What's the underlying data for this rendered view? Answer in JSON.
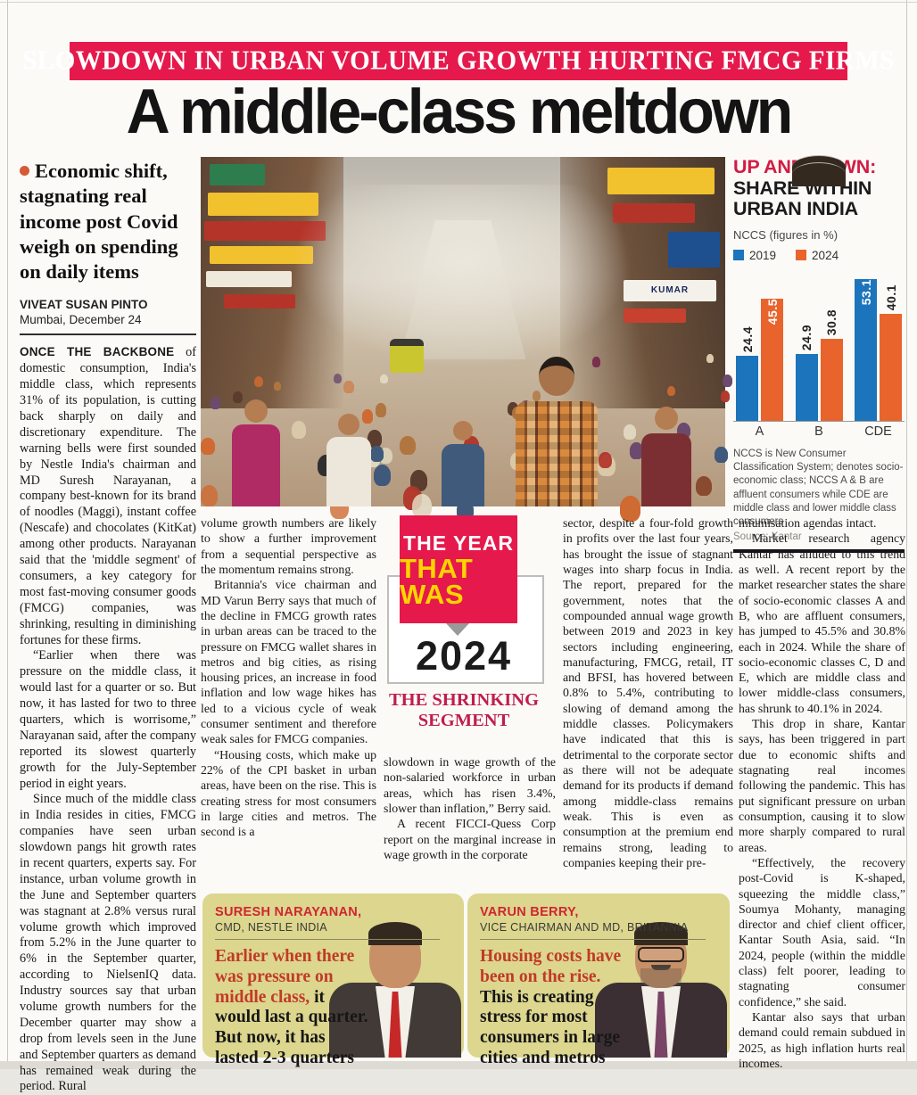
{
  "colors": {
    "accent_red": "#e5194b",
    "headline_black": "#141414",
    "chart_blue": "#1b74bc",
    "chart_orange": "#e8642c",
    "chart_title_red": "#d21c45",
    "badge_yellow": "#ffd400",
    "badge_tagline_red": "#bf1e4b",
    "quote_box_bg": "#dcd68e",
    "quote_highlight_red": "#c13a28",
    "quote_name_red": "#cf2630",
    "suit_dark": "#423a36",
    "tie_red": "#c62828",
    "tie_purple": "#7a4467"
  },
  "banner": {
    "text": "SLOWDOWN IN URBAN VOLUME GROWTH HURTING FMCG FIRMS"
  },
  "headline": "A middle-class meltdown",
  "standfirst": "Economic shift, stagnating real income post Covid weigh on spending on daily items",
  "byline": {
    "author": "VIVEAT SUSAN PINTO",
    "dateline": "Mumbai, December 24"
  },
  "article": {
    "col1": {
      "lead_in": "ONCE THE BACKBONE",
      "p1_rest": " of domestic consumption, India's middle class, which represents 31% of its population, is cutting back sharply on daily and discretionary expenditure. The warning bells were first sounded by Nestle India's chairman and MD Suresh Narayanan, a company best-known for its brand of noodles (Maggi), instant coffee (Nescafe) and chocolates (KitKat) among other products. Narayanan said that the 'middle segment' of consumers, a key category for most fast-moving consumer goods (FMCG) companies, was shrinking, resulting in diminishing fortunes for these firms.",
      "p2": "“Earlier when there was pressure on the middle class, it would last for a quarter or so. But now, it has lasted for two to three quarters, which is worrisome,” Narayanan said, after the company reported its slowest quarterly growth for the July-September period in eight years.",
      "p3": "Since much of the middle class in India resides in cities, FMCG companies have seen urban slowdown pangs hit growth rates in recent quarters, experts say. For instance, urban volume growth in the June and September quarters was stagnant at 2.8% versus rural volume growth which improved from 5.2% in the June quarter to 6% in the September quarter, according to NielsenIQ data. Industry sources say that urban volume growth numbers for the December quarter may show a drop from levels seen in the June and September quarters as demand has remained weak during the period. Rural"
    },
    "col2": {
      "p1": "volume growth numbers are likely to show a further improvement from a sequential perspective as the momentum remains strong.",
      "p2": "Britannia's vice chairman and MD Varun Berry says that much of the decline in FMCG growth rates in urban areas can be traced to the pressure on FMCG wallet shares in metros and big cities, as rising housing prices, an increase in food inflation and low wage hikes has led to a vicious cycle of weak consumer sentiment and therefore weak sales for FMCG companies.",
      "p3": "“Housing costs, which make up 22% of the CPI basket in urban areas, have been on the rise. This is creating stress for most consumers in large cities and metros. The second is a"
    },
    "col3": {
      "p1": "slowdown in wage growth of the non-salaried workforce in urban areas, which has risen 3.4%, slower than inflation,” Berry said.",
      "p2": "A recent FICCI-Quess Corp report on the marginal increase in wage growth in the corporate"
    },
    "col4": {
      "p1": "sector, despite a four-fold growth in profits over the last four years, has brought the issue of stagnant wages into sharp focus in India. The report, prepared for the government, notes that the compounded annual wage growth between 2019 and 2023 in key sectors including engineering, manufacturing, FMCG, retail, IT and BFSI, has hovered between 0.8% to 5.4%, contributing to slowing of demand among the middle classes. Policymakers have indicated that this is detrimental to the corporate sector as there will not be adequate demand for its products if demand among middle-class remains weak. This is even as consumption at the premium end remains strong, leading to companies keeping their pre-"
    },
    "col5": {
      "p1": "miumisation agendas intact.",
      "p2": "Market research agency Kantar has alluded to this trend as well. A recent report by the market researcher states the share of socio-economic classes A and B, who are affluent consumers, has jumped to 45.5% and 30.8% each in 2024. While the share of socio-economic classes C, D and E, which are middle class and lower middle-class consumers, has shrunk to 40.1% in 2024.",
      "p3": "This drop in share, Kantar says, has been triggered in part due to economic shifts and stagnating real incomes following the pandemic. This has put significant pressure on urban consumption, causing it to slow more sharply compared to rural areas.",
      "p4": "“Effectively, the recovery post-Covid is K-shaped, squeezing the middle class,” Soumya Mohanty, managing director and chief client officer, Kantar South Asia, said. “In 2024, people (within the middle class) felt poorer, leading to stagnating consumer confidence,” she said.",
      "p5": "Kantar also says that urban demand could remain subdued in 2025, as high inflation hurts real incomes."
    }
  },
  "chart": {
    "title_red": "UP AND DOWN:",
    "title_black": "SHARE WITHIN URBAN INDIA",
    "subtitle": "NCCS (figures in %)",
    "footnote": "NCCS is New Consumer Classification System; denotes socio-economic class; NCCS A & B are affluent consumers while CDE are middle class and lower middle class consumers",
    "source": "Source: Kantar"
  },
  "chart_data": {
    "type": "bar",
    "title": "UP AND DOWN: SHARE WITHIN URBAN INDIA",
    "subtitle": "NCCS (figures in %)",
    "categories": [
      "A",
      "B",
      "CDE"
    ],
    "series": [
      {
        "name": "2019",
        "color": "#1b74bc",
        "values": [
          24.4,
          24.9,
          53.1
        ]
      },
      {
        "name": "2024",
        "color": "#e8642c",
        "values": [
          45.5,
          30.8,
          40.1
        ]
      }
    ],
    "label_inside": [
      [
        false,
        false,
        true
      ],
      [
        true,
        false,
        false
      ]
    ],
    "ylim": [
      0,
      56
    ],
    "legend_position": "top",
    "grid": false
  },
  "badge": {
    "line1": "THE YEAR",
    "line2": "THAT WAS",
    "year": "2024",
    "tagline": "THE SHRINKING SEGMENT"
  },
  "photo": {
    "sign_text": "KUMAR"
  },
  "quotes": [
    {
      "name": "SURESH NARAYANAN,",
      "title": "CMD, NESTLE INDIA",
      "quote_highlight": "Earlier when there was pressure on middle class, ",
      "quote_rest": "it would last a quarter. But now, it has lasted 2-3 quarters"
    },
    {
      "name": "VARUN BERRY,",
      "title": "VICE CHAIRMAN AND MD, BRITANNIA",
      "quote_highlight": "Housing costs have been on the rise. ",
      "quote_rest": "This is creating stress for most consumers in large cities and metros"
    }
  ]
}
